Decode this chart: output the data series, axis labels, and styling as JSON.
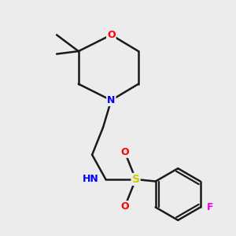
{
  "background_color": "#ececec",
  "bond_color": "#1a1a1a",
  "atom_colors": {
    "O": "#ff0000",
    "N": "#0000ff",
    "S": "#cccc00",
    "F": "#ee00ee",
    "H": "#888888",
    "C": "#1a1a1a"
  },
  "figsize": [
    3.0,
    3.0
  ],
  "dpi": 100
}
